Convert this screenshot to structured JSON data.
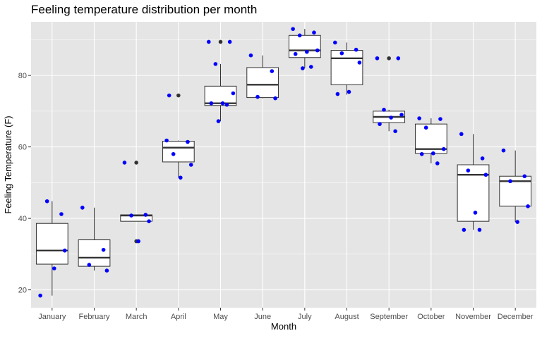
{
  "chart_data": {
    "type": "box",
    "title": "Feeling temperature distribution per month",
    "xlabel": "Month",
    "ylabel": "Feeling Temperature (F)",
    "ylim": [
      15,
      95
    ],
    "yticks": [
      20,
      40,
      60,
      80
    ],
    "categories": [
      "January",
      "February",
      "March",
      "April",
      "May",
      "June",
      "July",
      "August",
      "September",
      "October",
      "November",
      "December"
    ],
    "boxes": [
      {
        "month": "January",
        "q1": 27.2,
        "median": 31.0,
        "q3": 38.6,
        "whisker_low": 18.4,
        "whisker_high": 44.8,
        "outliers": []
      },
      {
        "month": "February",
        "q1": 26.6,
        "median": 29.0,
        "q3": 34.0,
        "whisker_low": 25.4,
        "whisker_high": 43.0,
        "outliers": []
      },
      {
        "month": "March",
        "q1": 39.2,
        "median": 40.8,
        "q3": 41.0,
        "whisker_low": 39.2,
        "whisker_high": 41.0,
        "outliers": [
          55.6,
          33.6
        ]
      },
      {
        "month": "April",
        "q1": 55.8,
        "median": 59.8,
        "q3": 61.6,
        "whisker_low": 51.4,
        "whisker_high": 61.8,
        "outliers": [
          74.4
        ]
      },
      {
        "month": "May",
        "q1": 71.6,
        "median": 72.2,
        "q3": 77.0,
        "whisker_low": 67.2,
        "whisker_high": 83.2,
        "outliers": [
          89.4
        ]
      },
      {
        "month": "June",
        "q1": 73.8,
        "median": 77.4,
        "q3": 82.2,
        "whisker_low": 73.6,
        "whisker_high": 85.6,
        "outliers": []
      },
      {
        "month": "July",
        "q1": 85.0,
        "median": 87.0,
        "q3": 91.2,
        "whisker_low": 82.0,
        "whisker_high": 93.0,
        "outliers": []
      },
      {
        "month": "August",
        "q1": 77.4,
        "median": 84.8,
        "q3": 87.0,
        "whisker_low": 74.6,
        "whisker_high": 89.2,
        "outliers": []
      },
      {
        "month": "September",
        "q1": 66.8,
        "median": 68.4,
        "q3": 70.0,
        "whisker_low": 64.4,
        "whisker_high": 70.4,
        "outliers": [
          84.8
        ]
      },
      {
        "month": "October",
        "q1": 58.2,
        "median": 59.4,
        "q3": 66.4,
        "whisker_low": 55.4,
        "whisker_high": 68.0,
        "outliers": []
      },
      {
        "month": "November",
        "q1": 39.2,
        "median": 52.2,
        "q3": 55.0,
        "whisker_low": 36.8,
        "whisker_high": 63.6,
        "outliers": []
      },
      {
        "month": "December",
        "q1": 43.4,
        "median": 50.4,
        "q3": 51.8,
        "whisker_low": 39.0,
        "whisker_high": 59.0,
        "outliers": []
      }
    ],
    "points": [
      {
        "month": "January",
        "values": [
          18.4,
          41.2,
          44.8,
          31.0,
          26.0
        ]
      },
      {
        "month": "February",
        "values": [
          43.0,
          31.2,
          27.0,
          25.4
        ]
      },
      {
        "month": "March",
        "values": [
          55.6,
          41.0,
          40.8,
          39.2,
          33.6
        ]
      },
      {
        "month": "April",
        "values": [
          61.8,
          61.4,
          58.0,
          55.0,
          51.4,
          74.4
        ]
      },
      {
        "month": "May",
        "values": [
          89.4,
          89.4,
          83.2,
          75.0,
          72.2,
          72.2,
          71.8,
          67.2
        ]
      },
      {
        "month": "June",
        "values": [
          85.6,
          81.2,
          74.0,
          73.6
        ]
      },
      {
        "month": "July",
        "values": [
          93.0,
          92.0,
          91.2,
          87.0,
          86.6,
          86.0,
          82.4,
          82.0
        ]
      },
      {
        "month": "August",
        "values": [
          89.2,
          87.2,
          86.2,
          83.6,
          75.4,
          74.8
        ]
      },
      {
        "month": "September",
        "values": [
          84.8,
          84.8,
          70.4,
          69.0,
          68.2,
          66.4,
          64.4
        ]
      },
      {
        "month": "October",
        "values": [
          68.0,
          67.8,
          65.4,
          59.4,
          58.2,
          58.0,
          55.4
        ]
      },
      {
        "month": "November",
        "values": [
          63.6,
          56.8,
          53.4,
          52.2,
          41.6,
          36.8,
          36.8
        ]
      },
      {
        "month": "December",
        "values": [
          59.0,
          51.8,
          50.4,
          43.4,
          39.0
        ]
      }
    ],
    "colors": {
      "panel_background": "#e5e5e5",
      "grid": "#ffffff",
      "box_fill": "#ffffff",
      "box_stroke": "#333333",
      "point": "#0000ff",
      "outlier": "#333333"
    },
    "grid": true,
    "legend": "none"
  }
}
